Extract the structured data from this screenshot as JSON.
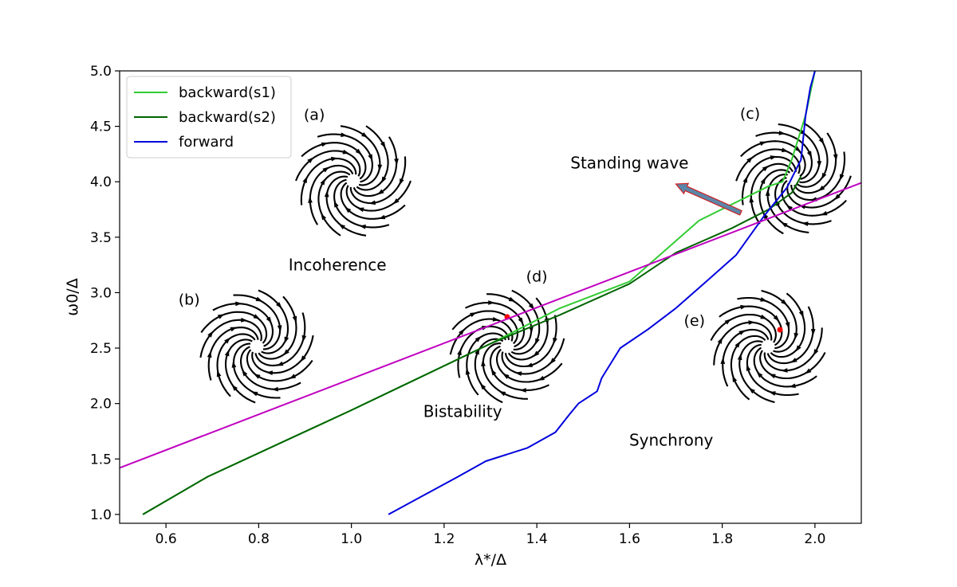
{
  "chart_data": {
    "type": "line",
    "xlabel": "λ*/Δ",
    "ylabel": "ω0/Δ",
    "xlim": [
      0.5,
      2.1
    ],
    "ylim": [
      0.92,
      5.0
    ],
    "xticks": [
      "0.6",
      "0.8",
      "1.0",
      "1.2",
      "1.4",
      "1.6",
      "1.8",
      "2.0"
    ],
    "yticks": [
      "1.0",
      "1.5",
      "2.0",
      "2.5",
      "3.0",
      "3.5",
      "4.0",
      "4.5",
      "5.0"
    ],
    "grid": false,
    "legend_position": "top-left",
    "series": [
      {
        "name": "backward(s1)",
        "color": "#33cc33",
        "x": [
          0.55,
          0.69,
          1.0,
          1.3,
          1.45,
          1.6,
          1.75,
          1.9,
          1.93,
          1.95,
          1.98,
          2.0
        ],
        "y": [
          1.0,
          1.34,
          1.94,
          2.54,
          2.86,
          3.1,
          3.65,
          3.96,
          4.0,
          4.2,
          4.6,
          5.0
        ]
      },
      {
        "name": "backward(s2)",
        "color": "#006400",
        "x": [
          0.55,
          0.69,
          1.0,
          1.3,
          1.45,
          1.6,
          1.7,
          1.82,
          1.9,
          1.95,
          1.97
        ],
        "y": [
          1.0,
          1.34,
          1.94,
          2.54,
          2.8,
          3.08,
          3.36,
          3.58,
          3.75,
          3.9,
          4.05
        ]
      },
      {
        "name": "forward",
        "color": "#0000dd",
        "x": [
          1.08,
          1.23,
          1.29,
          1.38,
          1.44,
          1.47,
          1.49,
          1.53,
          1.54,
          1.58,
          1.64,
          1.7,
          1.76,
          1.83,
          1.89,
          1.94,
          1.97,
          1.98,
          1.99,
          2.0
        ],
        "y": [
          1.0,
          1.34,
          1.48,
          1.6,
          1.74,
          1.9,
          2.0,
          2.11,
          2.23,
          2.5,
          2.67,
          2.86,
          3.08,
          3.34,
          3.69,
          3.95,
          4.2,
          4.6,
          4.85,
          5.0
        ]
      },
      {
        "name": "",
        "color": "#c000c0",
        "x": [
          0.5,
          2.1
        ],
        "y": [
          1.42,
          3.99
        ]
      }
    ],
    "annotations": {
      "regions": [
        {
          "text": "Incoherence",
          "x": 0.97,
          "y": 3.2
        },
        {
          "text": "Bistability",
          "x": 1.24,
          "y": 1.88
        },
        {
          "text": "Synchrony",
          "x": 1.69,
          "y": 1.62
        },
        {
          "text": "Standing wave",
          "x": 1.6,
          "y": 4.12
        }
      ],
      "panels": [
        {
          "text": "(a)",
          "x": 0.92,
          "y": 4.56
        },
        {
          "text": "(b)",
          "x": 0.65,
          "y": 2.89
        },
        {
          "text": "(c)",
          "x": 1.86,
          "y": 4.57
        },
        {
          "text": "(d)",
          "x": 1.4,
          "y": 3.1
        },
        {
          "text": "(e)",
          "x": 1.74,
          "y": 2.7
        }
      ],
      "arrow": {
        "from": [
          1.84,
          3.72
        ],
        "to": [
          1.7,
          3.98
        ],
        "color": "#5b86a8",
        "edge": "#d02020"
      }
    },
    "colors": {
      "axis": "#000000",
      "fixed_point": "#ff0000"
    }
  }
}
